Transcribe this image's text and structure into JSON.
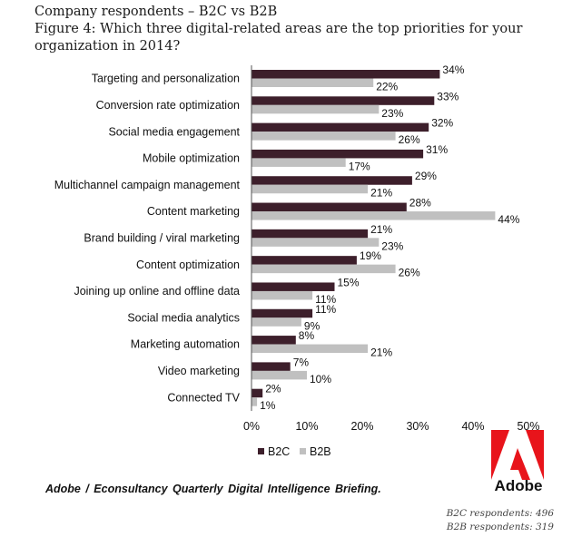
{
  "title": {
    "line1": "Company respondents – B2C vs B2B",
    "line2": "Figure 4: Which three digital-related areas are the top priorities for your organization in 2014?"
  },
  "chart_data": {
    "type": "bar",
    "orientation": "horizontal",
    "categories": [
      "Targeting and personalization",
      "Conversion rate optimization",
      "Social media engagement",
      "Mobile optimization",
      "Multichannel campaign management",
      "Content marketing",
      "Brand building / viral marketing",
      "Content optimization",
      "Joining up online and offline data",
      "Social media analytics",
      "Marketing automation",
      "Video marketing",
      "Connected TV"
    ],
    "series": [
      {
        "name": "B2C",
        "color": "#3d1f2b",
        "values": [
          34,
          33,
          32,
          31,
          29,
          28,
          21,
          19,
          15,
          11,
          8,
          7,
          2
        ],
        "labels": [
          "34%",
          "33%",
          "32%",
          "31%",
          "29%",
          "28%",
          "21%",
          "19%",
          "15%",
          "11%",
          "8%",
          "7%",
          "2%"
        ]
      },
      {
        "name": "B2B",
        "color": "#c0c0c0",
        "values": [
          22,
          23,
          26,
          17,
          21,
          44,
          23,
          26,
          11,
          9,
          21,
          10,
          1
        ],
        "labels": [
          "22%",
          "23%",
          "26%",
          "17%",
          "21%",
          "44%",
          "23%",
          "26%",
          "11%",
          "9%",
          "21%",
          "10%",
          "1%"
        ]
      }
    ],
    "xlim": [
      0,
      50
    ],
    "ticks": [
      0,
      10,
      20,
      30,
      40,
      50
    ],
    "tick_labels": [
      "0%",
      "10%",
      "20%",
      "30%",
      "40%",
      "50%"
    ],
    "grid": false,
    "legend": [
      "B2C",
      "B2B"
    ],
    "legend_position": "bottom"
  },
  "source": "Adobe / Econsultancy  Quarterly  Digital Intelligence  Briefing.",
  "logo": {
    "word": "Adobe",
    "color": "#e8141b"
  },
  "respondents": {
    "b2c": "B2C respondents: 496",
    "b2b": "B2B respondents: 319"
  }
}
